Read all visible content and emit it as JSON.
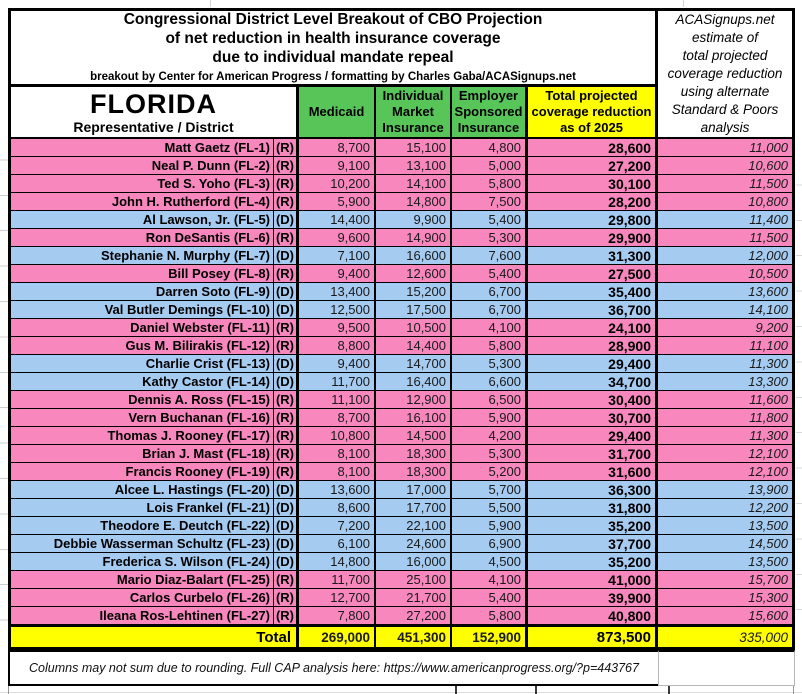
{
  "title": {
    "line1": "Congressional District Level Breakout of CBO Projection",
    "line2": "of net reduction in health insurance coverage",
    "line3": "due to individual mandate repeal",
    "byline": "breakout by Center for American Progress / formatting by Charles Gaba/ACASignups.net"
  },
  "state_box": {
    "state": "FLORIDA",
    "sublabel": "Representative / District"
  },
  "col_headers": {
    "medicaid": "Medicaid",
    "individual": "Individual\nMarket\nInsurance",
    "employer": "Employer\nSponsored\nInsurance",
    "total": "Total projected\ncoverage reduction\nas of 2025"
  },
  "aca_note": "ACASignups.net\nestimate of\ntotal projected\ncoverage reduction\nusing alternate\nStandard & Poors\nanalysis",
  "totals_label": "Total",
  "footer": {
    "note": "Columns may not sum due to rounding. Full CAP analysis here: https://www.americanprogress.org/?p=443767"
  },
  "colors": {
    "republican_row": "#f887bd",
    "democrat_row": "#a5cbf1",
    "header_green": "#58c558",
    "highlight_yellow": "#ffff00"
  },
  "chart_data": {
    "type": "table",
    "title": "Congressional District Level Breakout of CBO Projection of net reduction in health insurance coverage due to individual mandate repeal",
    "subtitle": "breakout by Center for American Progress / formatting by Charles Gaba/ACASignups.net",
    "state": "FLORIDA",
    "columns": [
      "Representative / District",
      "Party",
      "Medicaid",
      "Individual Market Insurance",
      "Employer Sponsored Insurance",
      "Total projected coverage reduction as of 2025",
      "ACASignups.net estimate of total projected coverage reduction using alternate Standard & Poors analysis"
    ],
    "rows": [
      [
        "Matt Gaetz (FL-1)",
        "R",
        8700,
        15100,
        4800,
        28600,
        11000
      ],
      [
        "Neal P. Dunn (FL-2)",
        "R",
        9100,
        13100,
        5000,
        27200,
        10600
      ],
      [
        "Ted S. Yoho (FL-3)",
        "R",
        10200,
        14100,
        5800,
        30100,
        11500
      ],
      [
        "John H. Rutherford (FL-4)",
        "R",
        5900,
        14800,
        7500,
        28200,
        10800
      ],
      [
        "Al Lawson, Jr. (FL-5)",
        "D",
        14400,
        9900,
        5400,
        29800,
        11400
      ],
      [
        "Ron DeSantis (FL-6)",
        "R",
        9600,
        14900,
        5300,
        29900,
        11500
      ],
      [
        "Stephanie N. Murphy (FL-7)",
        "D",
        7100,
        16600,
        7600,
        31300,
        12000
      ],
      [
        "Bill Posey (FL-8)",
        "R",
        9400,
        12600,
        5400,
        27500,
        10500
      ],
      [
        "Darren Soto (FL-9)",
        "D",
        13400,
        15200,
        6700,
        35400,
        13600
      ],
      [
        "Val Butler Demings (FL-10)",
        "D",
        12500,
        17500,
        6700,
        36700,
        14100
      ],
      [
        "Daniel Webster (FL-11)",
        "R",
        9500,
        10500,
        4100,
        24100,
        9200
      ],
      [
        "Gus M. Bilirakis (FL-12)",
        "R",
        8800,
        14400,
        5800,
        28900,
        11100
      ],
      [
        "Charlie Crist (FL-13)",
        "D",
        9400,
        14700,
        5300,
        29400,
        11300
      ],
      [
        "Kathy Castor (FL-14)",
        "D",
        11700,
        16400,
        6600,
        34700,
        13300
      ],
      [
        "Dennis A. Ross (FL-15)",
        "R",
        11100,
        12900,
        6500,
        30400,
        11600
      ],
      [
        "Vern Buchanan (FL-16)",
        "R",
        8700,
        16100,
        5900,
        30700,
        11800
      ],
      [
        "Thomas J. Rooney (FL-17)",
        "R",
        10800,
        14500,
        4200,
        29400,
        11300
      ],
      [
        "Brian J. Mast (FL-18)",
        "R",
        8100,
        18300,
        5300,
        31700,
        12100
      ],
      [
        "Francis Rooney (FL-19)",
        "R",
        8100,
        18300,
        5200,
        31600,
        12100
      ],
      [
        "Alcee L. Hastings (FL-20)",
        "D",
        13600,
        17000,
        5700,
        36300,
        13900
      ],
      [
        "Lois Frankel (FL-21)",
        "D",
        8600,
        17700,
        5500,
        31800,
        12200
      ],
      [
        "Theodore E. Deutch (FL-22)",
        "D",
        7200,
        22100,
        5900,
        35200,
        13500
      ],
      [
        "Debbie Wasserman Schultz (FL-23)",
        "D",
        6100,
        24600,
        6900,
        37700,
        14500
      ],
      [
        "Frederica S. Wilson (FL-24)",
        "D",
        14800,
        16000,
        4500,
        35200,
        13500
      ],
      [
        "Mario Diaz-Balart (FL-25)",
        "R",
        11700,
        25100,
        4100,
        41000,
        15700
      ],
      [
        "Carlos Curbelo (FL-26)",
        "R",
        12700,
        21700,
        5400,
        39900,
        15300
      ],
      [
        "Ileana Ros-Lehtinen (FL-27)",
        "R",
        7800,
        27200,
        5800,
        40800,
        15600
      ]
    ],
    "totals": [
      269000,
      451300,
      152900,
      873500,
      335000
    ]
  }
}
